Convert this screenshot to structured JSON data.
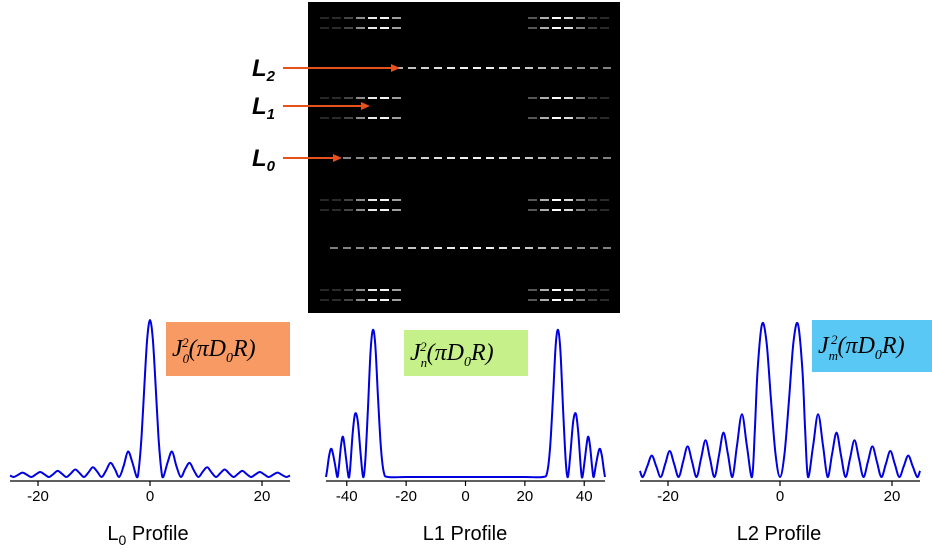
{
  "image_labels": [
    {
      "text": "L",
      "subscript": "2"
    },
    {
      "text": "L",
      "subscript": "1"
    },
    {
      "text": "L",
      "subscript": "0"
    }
  ],
  "chart_data": [
    {
      "type": "line",
      "xlabel": [
        "L",
        "0",
        " Profile"
      ],
      "annotation": {
        "text": [
          "J",
          "0",
          "2",
          "(πD",
          "0",
          "R)"
        ],
        "color": "#f79a63"
      },
      "color": "#0000e0",
      "xlim": [
        -25,
        25
      ],
      "ylim": [
        0,
        1
      ],
      "xticks": [
        -20,
        0,
        20
      ],
      "x": [
        -25,
        -24.35,
        -23.56,
        -22.78,
        -21.99,
        -21.21,
        -20.42,
        -19.63,
        -18.85,
        -18.06,
        -17.28,
        -16.49,
        -15.71,
        -14.92,
        -14.14,
        -13.35,
        -12.57,
        -11.78,
        -10.99,
        -10.21,
        -9.42,
        -8.64,
        -7.85,
        -7.07,
        -6.28,
        -5.5,
        -4.71,
        -3.93,
        -3.14,
        -2.36,
        -2,
        -1.5,
        -1,
        -0.5,
        0,
        0.5,
        1,
        1.5,
        2,
        2.36,
        3.14,
        3.93,
        4.71,
        5.5,
        6.28,
        7.07,
        7.85,
        8.64,
        9.42,
        10.21,
        10.99,
        11.78,
        12.57,
        13.35,
        14.14,
        14.92,
        15.71,
        16.49,
        17.28,
        18.06,
        18.85,
        19.63,
        20.42,
        21.21,
        21.99,
        22.78,
        23.56,
        24.35,
        25
      ],
      "values": [
        0.0093,
        0,
        0.0135,
        0.028,
        0.0145,
        0,
        0.0156,
        0.032,
        0.017,
        0,
        0.018,
        0.039,
        0.02,
        0,
        0.0225,
        0.048,
        0.025,
        0,
        0.029,
        0.062,
        0.034,
        0,
        0.041,
        0.09,
        0.051,
        0,
        0.07,
        0.162,
        0.092,
        0,
        0.05,
        0.262,
        0.585,
        0.88,
        1,
        0.88,
        0.585,
        0.262,
        0.05,
        0,
        0.092,
        0.162,
        0.07,
        0,
        0.051,
        0.09,
        0.041,
        0,
        0.034,
        0.062,
        0.029,
        0,
        0.025,
        0.048,
        0.0225,
        0,
        0.02,
        0.039,
        0.018,
        0,
        0.017,
        0.032,
        0.0156,
        0,
        0.0145,
        0.028,
        0.0135,
        0,
        0.0093
      ]
    },
    {
      "type": "line",
      "xlabel": "L1 Profile",
      "annotation": {
        "text": [
          "J",
          "n",
          "2",
          "(πD",
          "0",
          "R)"
        ],
        "color": "#c6f08a"
      },
      "color": "#0000e0",
      "xlim": [
        -47,
        47
      ],
      "ylim": [
        0,
        1
      ],
      "xticks": [
        -40,
        -20,
        0,
        20,
        40
      ],
      "x": [
        -47,
        -46.6,
        -45.9,
        -45.1,
        -44,
        -43.2,
        -42.7,
        -41.9,
        -41.2,
        -40.2,
        -39.4,
        -38.9,
        -38,
        -37.2,
        -36.3,
        -35.3,
        -34.5,
        -33.8,
        -32.9,
        -32,
        -31.2,
        -30.4,
        -29.5,
        -28.5,
        -27.5,
        -26,
        -20,
        -10,
        0,
        10,
        20,
        26,
        27.5,
        28.5,
        29.5,
        30.4,
        31.2,
        32,
        32.9,
        33.8,
        34.5,
        35.3,
        36.3,
        37.2,
        38,
        38.9,
        39.4,
        40.2,
        41.2,
        41.9,
        42.7,
        43.2,
        44,
        45.1,
        45.9,
        46.6,
        47
      ],
      "values": [
        0,
        0.05,
        0.15,
        0.19,
        0.09,
        0,
        0.06,
        0.22,
        0.27,
        0.12,
        0,
        0.05,
        0.3,
        0.43,
        0.38,
        0.15,
        0,
        0.1,
        0.45,
        0.85,
        1,
        0.9,
        0.55,
        0.2,
        0.03,
        0,
        0,
        0,
        0,
        0,
        0,
        0,
        0.03,
        0.2,
        0.55,
        0.9,
        1,
        0.85,
        0.45,
        0.1,
        0,
        0.15,
        0.38,
        0.43,
        0.3,
        0.05,
        0,
        0.12,
        0.27,
        0.22,
        0.06,
        0,
        0.09,
        0.19,
        0.15,
        0.05,
        0
      ]
    },
    {
      "type": "line",
      "xlabel": "L2 Profile",
      "annotation": {
        "text": [
          "J",
          "m",
          "2",
          "(πD",
          "0",
          "R)"
        ],
        "color": "#5ac8f5"
      },
      "color": "#0000e0",
      "xlim": [
        -25,
        25
      ],
      "ylim": [
        0,
        1
      ],
      "xticks": [
        -20,
        0,
        20
      ],
      "x": [
        -25,
        -24.5,
        -23.7,
        -22.9,
        -22.1,
        -21.3,
        -20.5,
        -19.7,
        -18.9,
        -18.1,
        -17.3,
        -16.5,
        -15.7,
        -14.9,
        -14.1,
        -13.3,
        -12.5,
        -11.7,
        -10.9,
        -10.1,
        -9.3,
        -8.5,
        -7.7,
        -6.8,
        -5.9,
        -5,
        -4.5,
        -4,
        -3.2,
        -2.4,
        -1.6,
        -0.8,
        0,
        0.8,
        1.6,
        2.4,
        3.2,
        4,
        4.5,
        5,
        5.9,
        6.8,
        7.7,
        8.5,
        9.3,
        10.1,
        10.9,
        11.7,
        12.5,
        13.3,
        14.1,
        14.9,
        15.7,
        16.5,
        17.3,
        18.1,
        18.9,
        19.7,
        20.5,
        21.3,
        22.1,
        22.9,
        23.7,
        24.5,
        25
      ],
      "values": [
        0.04,
        0,
        0.07,
        0.14,
        0.07,
        0,
        0.085,
        0.17,
        0.085,
        0,
        0.1,
        0.2,
        0.1,
        0,
        0.12,
        0.24,
        0.12,
        0,
        0.14,
        0.29,
        0.15,
        0,
        0.2,
        0.41,
        0.2,
        0,
        0.3,
        0.7,
        1,
        0.88,
        0.5,
        0.15,
        0,
        0.15,
        0.5,
        0.88,
        1,
        0.7,
        0.3,
        0,
        0.2,
        0.41,
        0.2,
        0,
        0.15,
        0.29,
        0.14,
        0,
        0.12,
        0.24,
        0.12,
        0,
        0.1,
        0.2,
        0.1,
        0,
        0.085,
        0.17,
        0.085,
        0,
        0.07,
        0.14,
        0.07,
        0,
        0.04
      ]
    }
  ]
}
